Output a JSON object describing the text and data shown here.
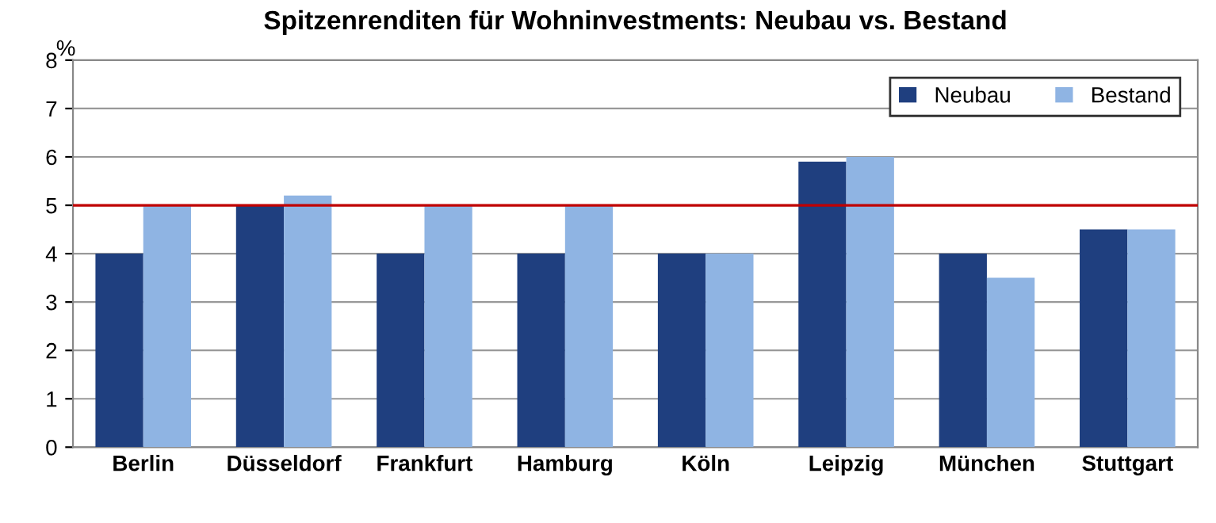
{
  "chart_data": {
    "type": "bar",
    "title": "Spitzenrenditen für Wohninvestments: Neubau vs. Bestand",
    "ylabel": "%",
    "categories": [
      "Berlin",
      "Düsseldorf",
      "Frankfurt",
      "Hamburg",
      "Köln",
      "Leipzig",
      "München",
      "Stuttgart"
    ],
    "series": [
      {
        "name": "Neubau",
        "color": "#1f3f7f",
        "values": [
          4,
          5,
          4,
          4,
          4,
          5.9,
          4,
          4.5
        ]
      },
      {
        "name": "Bestand",
        "color": "#8fb4e3",
        "values": [
          5,
          5.2,
          5,
          5,
          4,
          6,
          3.5,
          4.5
        ]
      }
    ],
    "ylim": [
      0,
      8
    ],
    "yticks": [
      0,
      1,
      2,
      3,
      4,
      5,
      6,
      7,
      8
    ],
    "grid": "y",
    "legend": "top right",
    "ref_lines": [
      {
        "axis": "y",
        "value": 5,
        "color": "#c00000",
        "line_style": "solid"
      }
    ]
  }
}
